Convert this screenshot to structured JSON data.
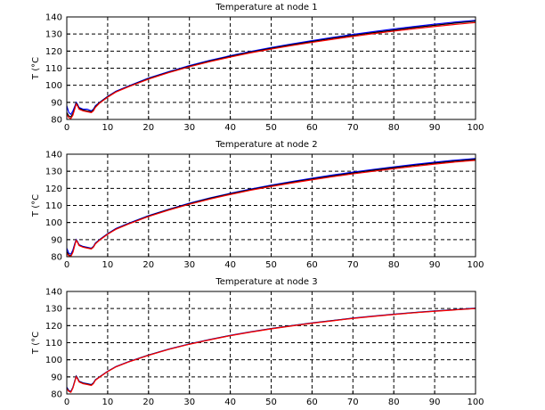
{
  "colors": {
    "blue": "#0000ff",
    "black": "#000000",
    "red": "#ff0000"
  },
  "chart_data": [
    {
      "type": "line",
      "title": "Temperature at node 1",
      "xlabel": "",
      "ylabel": "T (°C",
      "xlim": [
        0,
        100
      ],
      "ylim": [
        80,
        140
      ],
      "xticks": [
        0,
        10,
        20,
        30,
        40,
        50,
        60,
        70,
        80,
        90,
        100
      ],
      "yticks": [
        80,
        90,
        100,
        110,
        120,
        130,
        140
      ],
      "grid": true,
      "series": [
        {
          "color": "blue",
          "x": [
            0,
            0.5,
            1,
            1.5,
            2,
            2.3,
            2.6,
            3,
            4,
            5,
            6,
            6.5,
            7,
            8,
            10,
            12,
            15,
            20,
            25,
            30,
            35,
            40,
            45,
            50,
            55,
            60,
            65,
            70,
            75,
            80,
            85,
            90,
            95,
            100
          ],
          "y": [
            88,
            84,
            83,
            85,
            88,
            90,
            89,
            87,
            86,
            86,
            85,
            86,
            88,
            90,
            93.5,
            96.5,
            99.5,
            104.2,
            108,
            111.5,
            114.6,
            117.3,
            119.8,
            122.1,
            124.2,
            126.1,
            128,
            129.8,
            131.4,
            133,
            134.4,
            135.8,
            137,
            138
          ]
        },
        {
          "color": "black",
          "x": [
            0,
            0.5,
            1,
            1.5,
            2,
            2.3,
            2.6,
            3,
            4,
            5,
            6,
            6.5,
            7,
            8,
            10,
            12,
            15,
            20,
            25,
            30,
            35,
            40,
            45,
            50,
            55,
            60,
            65,
            70,
            75,
            80,
            85,
            90,
            95,
            100
          ],
          "y": [
            84,
            82,
            81.5,
            83.5,
            87,
            89.5,
            88.5,
            86.5,
            85.5,
            85,
            84.5,
            85.5,
            87.5,
            89.8,
            93.3,
            96.2,
            99.2,
            103.9,
            107.7,
            111.1,
            114.2,
            116.9,
            119.4,
            121.6,
            123.7,
            125.6,
            127.5,
            129.2,
            130.8,
            132.3,
            133.8,
            135.1,
            136.4,
            137.5
          ]
        },
        {
          "color": "red",
          "x": [
            0,
            0.5,
            1,
            1.5,
            2,
            2.3,
            2.6,
            3,
            4,
            5,
            6,
            6.5,
            7,
            8,
            10,
            12,
            15,
            20,
            25,
            30,
            35,
            40,
            45,
            50,
            55,
            60,
            65,
            70,
            75,
            80,
            85,
            90,
            95,
            100
          ],
          "y": [
            83,
            81,
            80.5,
            82.5,
            86.5,
            89,
            88,
            86,
            85,
            84.5,
            84,
            85,
            87,
            89.5,
            93,
            96,
            99,
            103.6,
            107.4,
            110.8,
            113.8,
            116.5,
            119,
            121.2,
            123.2,
            125.1,
            126.9,
            128.6,
            130.2,
            131.7,
            133.1,
            134.4,
            135.6,
            136.7
          ]
        }
      ]
    },
    {
      "type": "line",
      "title": "Temperature at node 2",
      "xlabel": "",
      "ylabel": "T (°C",
      "xlim": [
        0,
        100
      ],
      "ylim": [
        80,
        140
      ],
      "xticks": [
        0,
        10,
        20,
        30,
        40,
        50,
        60,
        70,
        80,
        90,
        100
      ],
      "yticks": [
        80,
        90,
        100,
        110,
        120,
        130,
        140
      ],
      "grid": true,
      "series": [
        {
          "color": "blue",
          "x": [
            0,
            0.5,
            1,
            1.5,
            2,
            2.3,
            2.6,
            3,
            4,
            5,
            6,
            6.5,
            7,
            8,
            10,
            12,
            15,
            20,
            25,
            30,
            35,
            40,
            45,
            50,
            55,
            60,
            65,
            70,
            75,
            80,
            85,
            90,
            95,
            100
          ],
          "y": [
            85,
            82,
            81.5,
            84,
            88,
            90,
            89,
            87,
            86,
            85.5,
            85,
            86,
            88,
            90,
            93.5,
            96.5,
            99.5,
            104,
            107.8,
            111.3,
            114.4,
            117.1,
            119.6,
            121.9,
            124,
            125.9,
            127.8,
            129.5,
            131.1,
            132.6,
            134,
            135.3,
            136.5,
            137.5
          ]
        },
        {
          "color": "black",
          "x": [
            0,
            0.5,
            1,
            1.5,
            2,
            2.3,
            2.6,
            3,
            4,
            5,
            6,
            6.5,
            7,
            8,
            10,
            12,
            15,
            20,
            25,
            30,
            35,
            40,
            45,
            50,
            55,
            60,
            65,
            70,
            75,
            80,
            85,
            90,
            95,
            100
          ],
          "y": [
            83,
            81,
            80.5,
            83,
            87.5,
            89.7,
            88.7,
            86.7,
            85.7,
            85.2,
            84.7,
            85.7,
            87.7,
            89.8,
            93.3,
            96.2,
            99.2,
            103.8,
            107.6,
            111,
            114.1,
            116.8,
            119.3,
            121.5,
            123.6,
            125.5,
            127.3,
            129,
            130.6,
            132.1,
            133.5,
            134.8,
            136,
            137
          ]
        },
        {
          "color": "red",
          "x": [
            0,
            0.5,
            1,
            1.5,
            2,
            2.3,
            2.6,
            3,
            4,
            5,
            6,
            6.5,
            7,
            8,
            10,
            12,
            15,
            20,
            25,
            30,
            35,
            40,
            45,
            50,
            55,
            60,
            65,
            70,
            75,
            80,
            85,
            90,
            95,
            100
          ],
          "y": [
            82,
            80.5,
            80.2,
            82.5,
            87,
            89.5,
            88.5,
            86.5,
            85.5,
            85,
            84.5,
            85.5,
            87.5,
            89.6,
            93.1,
            96,
            99,
            103.5,
            107.3,
            110.7,
            113.7,
            116.4,
            118.9,
            121.1,
            123.1,
            125,
            126.8,
            128.5,
            130,
            131.5,
            132.9,
            134.2,
            135.4,
            136.4
          ]
        }
      ]
    },
    {
      "type": "line",
      "title": "Temperature at node 3",
      "xlabel": "",
      "ylabel": "T (°C",
      "xlim": [
        0,
        100
      ],
      "ylim": [
        80,
        140
      ],
      "xticks": [
        0,
        10,
        20,
        30,
        40,
        50,
        60,
        70,
        80,
        90,
        100
      ],
      "yticks": [
        80,
        90,
        100,
        110,
        120,
        130,
        140
      ],
      "grid": true,
      "series": [
        {
          "color": "blue",
          "x": [
            0,
            0.5,
            1,
            1.5,
            2,
            2.3,
            2.6,
            3,
            4,
            5,
            6,
            6.5,
            7,
            8,
            10,
            12,
            15,
            20,
            25,
            30,
            35,
            40,
            45,
            50,
            55,
            60,
            65,
            70,
            75,
            80,
            85,
            90,
            95,
            100
          ],
          "y": [
            84,
            82,
            81.5,
            84,
            88,
            90.5,
            89.5,
            87.5,
            86.5,
            86,
            85.5,
            86.5,
            88.3,
            90,
            93.3,
            96,
            98.8,
            102.8,
            106.3,
            109.3,
            111.9,
            114.3,
            116.4,
            118.3,
            120,
            121.6,
            123,
            124.4,
            125.6,
            126.7,
            127.7,
            128.6,
            129.4,
            130.2
          ]
        },
        {
          "color": "black",
          "x": [
            0,
            0.5,
            1,
            1.5,
            2,
            2.3,
            2.6,
            3,
            4,
            5,
            6,
            6.5,
            7,
            8,
            10,
            12,
            15,
            20,
            25,
            30,
            35,
            40,
            45,
            50,
            55,
            60,
            65,
            70,
            75,
            80,
            85,
            90,
            95,
            100
          ],
          "y": [
            83.5,
            81.7,
            81.2,
            83.7,
            87.8,
            90.3,
            89.3,
            87.3,
            86.3,
            85.8,
            85.3,
            86.3,
            88.2,
            89.9,
            93.2,
            95.9,
            98.7,
            102.7,
            106.2,
            109.2,
            111.8,
            114.2,
            116.3,
            118.2,
            119.9,
            121.5,
            122.9,
            124.3,
            125.5,
            126.6,
            127.6,
            128.5,
            129.3,
            130.1
          ]
        },
        {
          "color": "red",
          "x": [
            0,
            0.5,
            1,
            1.5,
            2,
            2.3,
            2.6,
            3,
            4,
            5,
            6,
            6.5,
            7,
            8,
            10,
            12,
            15,
            20,
            25,
            30,
            35,
            40,
            45,
            50,
            55,
            60,
            65,
            70,
            75,
            80,
            85,
            90,
            95,
            100
          ],
          "y": [
            83,
            81.5,
            81,
            83.5,
            87.5,
            90,
            89,
            87,
            86,
            85.5,
            85,
            86,
            88,
            89.8,
            93.1,
            95.8,
            98.6,
            102.6,
            106.1,
            109.1,
            111.7,
            114.1,
            116.2,
            118.1,
            119.8,
            121.4,
            122.8,
            124.2,
            125.4,
            126.5,
            127.5,
            128.4,
            129.2,
            130
          ]
        }
      ]
    }
  ]
}
